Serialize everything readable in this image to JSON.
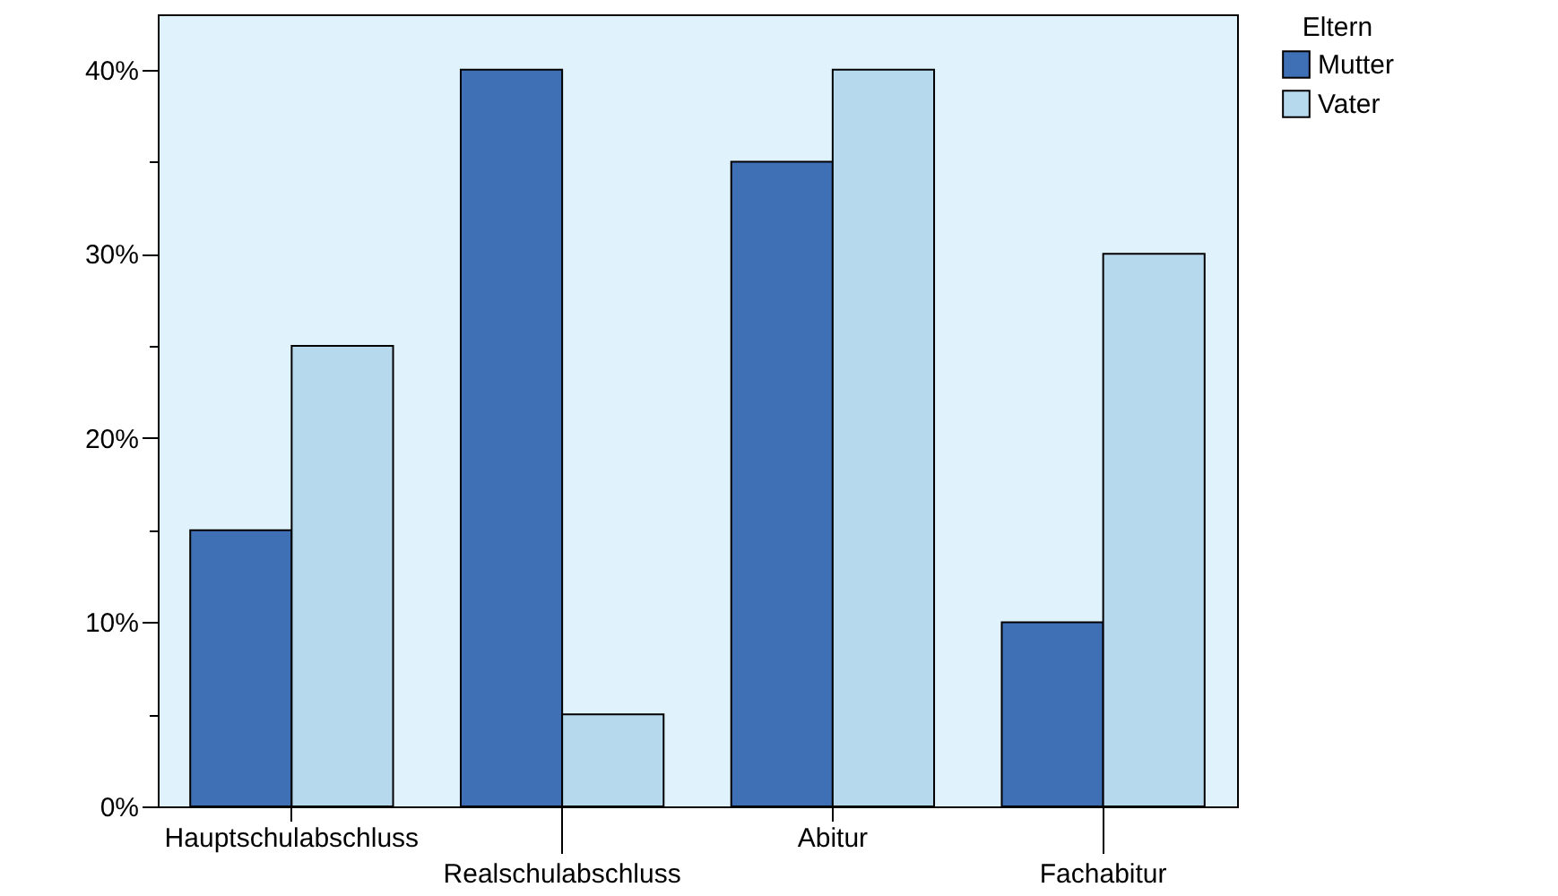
{
  "chart_data": {
    "type": "bar",
    "categories": [
      "Hauptschulabschluss",
      "Realschulabschluss",
      "Abitur",
      "Fachabitur"
    ],
    "series": [
      {
        "name": "Mutter",
        "color": "#3f6fb5",
        "values": [
          15,
          40,
          35,
          10
        ]
      },
      {
        "name": "Vater",
        "color": "#b7d9ee",
        "values": [
          25,
          5,
          40,
          30
        ]
      }
    ],
    "legend_title": "Eltern",
    "legend": "top right",
    "grid": false,
    "ylim": [
      0,
      43
    ],
    "yticks": [
      {
        "value": 0,
        "label": "0%"
      },
      {
        "value": 5,
        "label": null
      },
      {
        "value": 10,
        "label": "10%"
      },
      {
        "value": 15,
        "label": null
      },
      {
        "value": 20,
        "label": "20%"
      },
      {
        "value": 25,
        "label": null
      },
      {
        "value": 30,
        "label": "30%"
      },
      {
        "value": 35,
        "label": null
      },
      {
        "value": 40,
        "label": "40%"
      }
    ]
  }
}
